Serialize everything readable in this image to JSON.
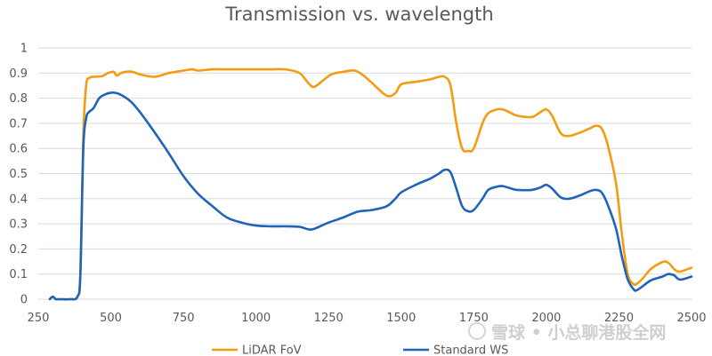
{
  "chart_data": {
    "type": "line",
    "title": "Transmission vs. wavelength",
    "xlabel": "",
    "ylabel": "",
    "xlim": [
      250,
      2500
    ],
    "ylim": [
      0,
      1
    ],
    "xticks": [
      250,
      500,
      750,
      1000,
      1250,
      1500,
      1750,
      2000,
      2250,
      2500
    ],
    "yticks": [
      0,
      0.1,
      0.2,
      0.3,
      0.4,
      0.5,
      0.6,
      0.7,
      0.8,
      0.9,
      1
    ],
    "grid": "horizontal",
    "legend_position": "bottom",
    "series": [
      {
        "name": "LiDAR FoV",
        "color": "#F39C12",
        "x": [
          290,
          300,
          310,
          320,
          360,
          385,
          395,
          405,
          415,
          425,
          440,
          470,
          490,
          510,
          520,
          535,
          550,
          575,
          600,
          650,
          700,
          750,
          780,
          800,
          850,
          900,
          950,
          1000,
          1050,
          1100,
          1150,
          1180,
          1200,
          1230,
          1260,
          1300,
          1340,
          1370,
          1400,
          1450,
          1480,
          1500,
          1550,
          1600,
          1630,
          1650,
          1670,
          1690,
          1710,
          1730,
          1750,
          1780,
          1800,
          1830,
          1850,
          1880,
          1900,
          1950,
          1980,
          2000,
          2020,
          2050,
          2080,
          2120,
          2150,
          2170,
          2190,
          2210,
          2240,
          2260,
          2280,
          2300,
          2310,
          2330,
          2360,
          2400,
          2420,
          2440,
          2460,
          2500
        ],
        "y": [
          0,
          0.01,
          0,
          0,
          0,
          0.01,
          0.1,
          0.65,
          0.85,
          0.88,
          0.885,
          0.888,
          0.9,
          0.905,
          0.89,
          0.9,
          0.905,
          0.905,
          0.895,
          0.885,
          0.9,
          0.91,
          0.915,
          0.91,
          0.915,
          0.915,
          0.915,
          0.915,
          0.915,
          0.915,
          0.9,
          0.86,
          0.845,
          0.87,
          0.895,
          0.905,
          0.91,
          0.89,
          0.86,
          0.81,
          0.82,
          0.855,
          0.865,
          0.875,
          0.885,
          0.885,
          0.85,
          0.7,
          0.6,
          0.59,
          0.6,
          0.7,
          0.74,
          0.755,
          0.755,
          0.74,
          0.73,
          0.725,
          0.745,
          0.755,
          0.73,
          0.66,
          0.65,
          0.665,
          0.68,
          0.69,
          0.68,
          0.62,
          0.46,
          0.26,
          0.1,
          0.06,
          0.06,
          0.08,
          0.12,
          0.148,
          0.145,
          0.12,
          0.11,
          0.125
        ]
      },
      {
        "name": "Standard WS",
        "color": "#1F64B8",
        "x": [
          290,
          300,
          310,
          320,
          360,
          385,
          395,
          405,
          415,
          425,
          440,
          460,
          480,
          500,
          520,
          540,
          570,
          600,
          650,
          700,
          750,
          800,
          850,
          900,
          950,
          1000,
          1050,
          1100,
          1150,
          1180,
          1200,
          1250,
          1300,
          1350,
          1400,
          1450,
          1480,
          1500,
          1550,
          1600,
          1630,
          1650,
          1670,
          1690,
          1710,
          1730,
          1750,
          1780,
          1800,
          1830,
          1850,
          1880,
          1900,
          1950,
          1980,
          2000,
          2020,
          2050,
          2080,
          2120,
          2150,
          2170,
          2190,
          2210,
          2240,
          2260,
          2280,
          2300,
          2310,
          2330,
          2360,
          2400,
          2420,
          2440,
          2460,
          2500
        ],
        "y": [
          0,
          0.01,
          0,
          0,
          0,
          0.01,
          0.1,
          0.6,
          0.72,
          0.745,
          0.76,
          0.8,
          0.815,
          0.822,
          0.82,
          0.81,
          0.785,
          0.745,
          0.665,
          0.58,
          0.49,
          0.42,
          0.37,
          0.325,
          0.305,
          0.293,
          0.29,
          0.29,
          0.288,
          0.278,
          0.28,
          0.305,
          0.325,
          0.348,
          0.355,
          0.37,
          0.4,
          0.425,
          0.455,
          0.48,
          0.5,
          0.515,
          0.505,
          0.44,
          0.37,
          0.35,
          0.355,
          0.4,
          0.435,
          0.448,
          0.45,
          0.44,
          0.435,
          0.435,
          0.445,
          0.455,
          0.44,
          0.405,
          0.4,
          0.415,
          0.43,
          0.435,
          0.425,
          0.38,
          0.28,
          0.17,
          0.08,
          0.04,
          0.035,
          0.05,
          0.075,
          0.09,
          0.1,
          0.095,
          0.078,
          0.09
        ]
      }
    ],
    "watermark": "雪球 • 小总聊港股全网"
  }
}
